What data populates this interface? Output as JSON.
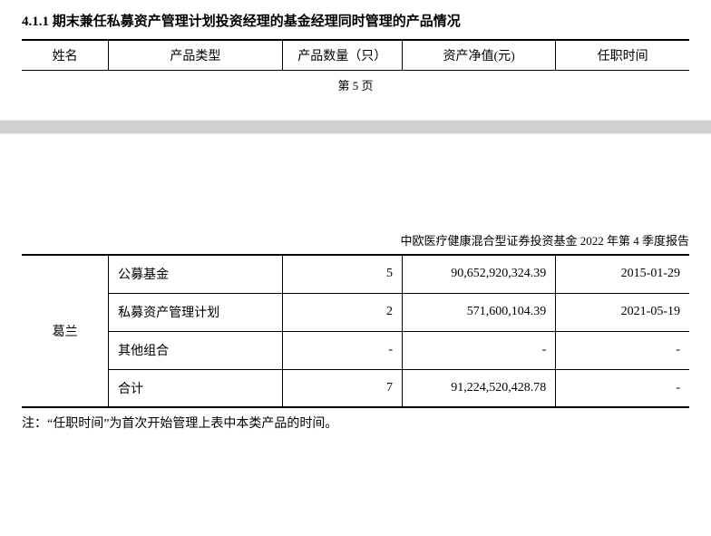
{
  "heading": "4.1.1 期末兼任私募资产管理计划投资经理的基金经理同时管理的产品情况",
  "header_table": {
    "cols": [
      "姓名",
      "产品类型",
      "产品数量（只）",
      "资产净值(元)",
      "任职时间"
    ]
  },
  "page_num": "第 5 页",
  "report_title": "中欧医疗健康混合型证券投资基金 2022 年第 4 季度报告",
  "data_table": {
    "name": "葛兰",
    "rows": [
      {
        "type": "公募基金",
        "qty": "5",
        "val": "90,652,920,324.39",
        "date": "2015-01-29"
      },
      {
        "type": "私募资产管理计划",
        "qty": "2",
        "val": "571,600,104.39",
        "date": "2021-05-19"
      },
      {
        "type": "其他组合",
        "qty": "-",
        "val": "-",
        "date": "-"
      },
      {
        "type": "合计",
        "qty": "7",
        "val": "91,224,520,428.78",
        "date": "-"
      }
    ]
  },
  "footnote": "注：“任职时间”为首次开始管理上表中本类产品的时间。",
  "style": {
    "body_font": "SimSun",
    "heading_fontsize": 15,
    "table_fontsize": 14,
    "small_fontsize": 13,
    "border_thick": 2.5,
    "border_thin": 1,
    "text_color": "#000000",
    "bg_color": "#ffffff",
    "col_widths_pct": [
      13,
      26,
      18,
      23,
      20
    ]
  }
}
